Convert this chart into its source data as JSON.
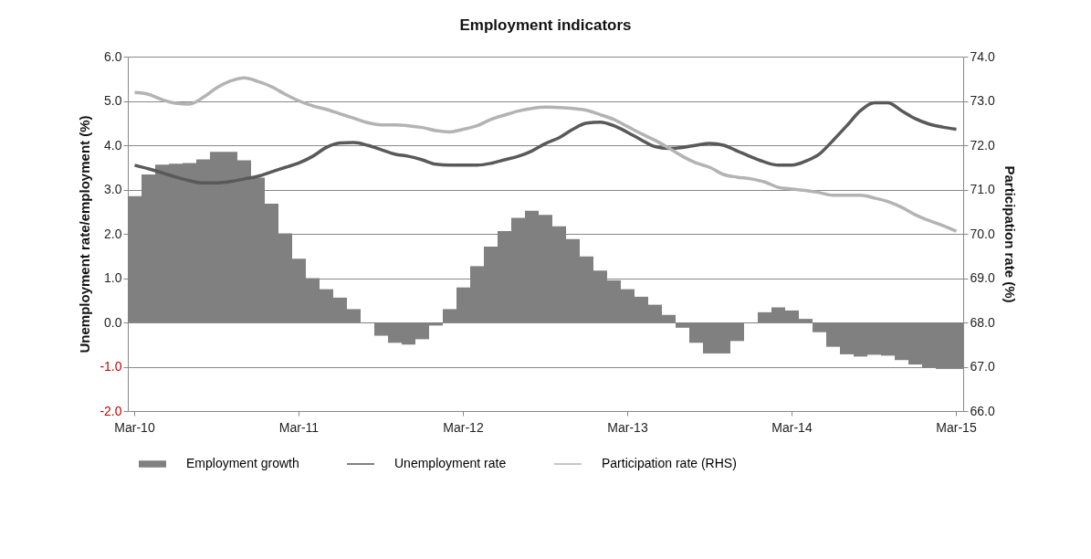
{
  "chart_data": {
    "type": "bar",
    "title": "Employment indicators",
    "ylabel": "Unemployment rate/employment (%)",
    "y2label": "Participation rate (%)",
    "categories": [
      "Mar-10",
      null,
      null,
      null,
      null,
      null,
      null,
      null,
      null,
      null,
      null,
      null,
      "Mar-11",
      null,
      null,
      null,
      null,
      null,
      null,
      null,
      null,
      null,
      null,
      null,
      "Mar-12",
      null,
      null,
      null,
      null,
      null,
      null,
      null,
      null,
      null,
      null,
      null,
      "Mar-13",
      null,
      null,
      null,
      null,
      null,
      null,
      null,
      null,
      null,
      null,
      null,
      "Mar-14",
      null,
      null,
      null,
      null,
      null,
      null,
      null,
      null,
      null,
      null,
      null,
      "Mar-15"
    ],
    "series": [
      {
        "name": "Employment growth",
        "color": "#808080",
        "values": [
          2.85,
          3.34,
          3.56,
          3.58,
          3.6,
          3.68,
          3.85,
          3.85,
          3.66,
          3.27,
          2.68,
          2.01,
          1.44,
          1.0,
          0.75,
          0.56,
          0.3,
          -0.02,
          -0.3,
          -0.46,
          -0.5,
          -0.38,
          -0.07,
          0.3,
          0.79,
          1.27,
          1.71,
          2.06,
          2.36,
          2.52,
          2.43,
          2.17,
          1.88,
          1.49,
          1.17,
          0.95,
          0.75,
          0.58,
          0.4,
          0.17,
          -0.12,
          -0.46,
          -0.7,
          -0.7,
          -0.42,
          -0.02,
          0.23,
          0.34,
          0.27,
          0.08,
          -0.22,
          -0.55,
          -0.72,
          -0.77,
          -0.73,
          -0.75,
          -0.85,
          -0.95,
          -1.02,
          -1.05,
          -1.05
        ]
      },
      {
        "name": "Unemployment rate",
        "type": "line",
        "color": "#595959",
        "values": [
          3.55,
          3.47,
          3.38,
          3.28,
          3.2,
          3.15,
          3.15,
          3.18,
          3.24,
          3.3,
          3.4,
          3.5,
          3.6,
          3.75,
          3.95,
          4.05,
          4.06,
          4.0,
          3.9,
          3.8,
          3.75,
          3.67,
          3.57,
          3.55,
          3.55,
          3.55,
          3.59,
          3.67,
          3.75,
          3.87,
          4.04,
          4.17,
          4.36,
          4.5,
          4.52,
          4.44,
          4.29,
          4.12,
          3.97,
          3.93,
          3.95,
          4.0,
          4.04,
          4.0,
          3.87,
          3.74,
          3.62,
          3.55,
          3.55,
          3.64,
          3.8,
          4.11,
          4.44,
          4.78,
          4.96,
          4.96,
          4.78,
          4.6,
          4.48,
          4.41,
          4.36
        ]
      },
      {
        "name": "Participation rate (RHS)",
        "type": "line",
        "axis": "y2",
        "color": "#b3b3b3",
        "values": [
          73.19,
          73.15,
          73.03,
          72.95,
          72.93,
          73.08,
          73.3,
          73.45,
          73.52,
          73.44,
          73.32,
          73.15,
          73.0,
          72.89,
          72.81,
          72.71,
          72.61,
          72.51,
          72.46,
          72.46,
          72.44,
          72.4,
          72.33,
          72.3,
          72.36,
          72.44,
          72.58,
          72.68,
          72.77,
          72.83,
          72.86,
          72.85,
          72.83,
          72.79,
          72.69,
          72.58,
          72.42,
          72.26,
          72.11,
          71.94,
          71.75,
          71.6,
          71.5,
          71.34,
          71.28,
          71.24,
          71.17,
          71.05,
          71.01,
          70.98,
          70.93,
          70.87,
          70.87,
          70.87,
          70.81,
          70.73,
          70.6,
          70.43,
          70.3,
          70.19,
          70.06
        ]
      }
    ],
    "ylim": [
      -2,
      6
    ],
    "yticks": [
      {
        "value": -2,
        "label": "-2.0"
      },
      {
        "value": -1,
        "label": "-1.0"
      },
      {
        "value": 0,
        "label": "0.0"
      },
      {
        "value": 1,
        "label": "1.0"
      },
      {
        "value": 2,
        "label": "2.0"
      },
      {
        "value": 3,
        "label": "3.0"
      },
      {
        "value": 4,
        "label": "4.0"
      },
      {
        "value": 5,
        "label": "5.0"
      },
      {
        "value": 6,
        "label": "6.0"
      }
    ],
    "y2lim": [
      66,
      74
    ],
    "y2ticks": [
      {
        "value": 66,
        "label": "66.0"
      },
      {
        "value": 67,
        "label": "67.0"
      },
      {
        "value": 68,
        "label": "68.0"
      },
      {
        "value": 69,
        "label": "69.0"
      },
      {
        "value": 70,
        "label": "70.0"
      },
      {
        "value": 71,
        "label": "71.0"
      },
      {
        "value": 72,
        "label": "72.0"
      },
      {
        "value": 73,
        "label": "73.0"
      },
      {
        "value": 74,
        "label": "74.0"
      }
    ],
    "grid": "y",
    "legend": "bottom"
  }
}
